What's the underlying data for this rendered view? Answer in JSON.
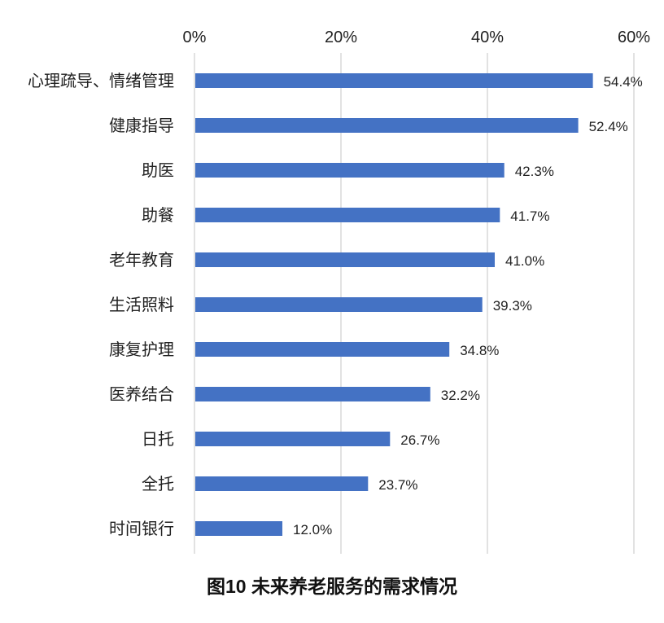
{
  "chart_data": {
    "type": "bar",
    "orientation": "horizontal",
    "title": "图10 未来养老服务的需求情况",
    "categories": [
      "心理疏导、情绪管理",
      "健康指导",
      "助医",
      "助餐",
      "老年教育",
      "生活照料",
      "康复护理",
      "医养结合",
      "日托",
      "全托",
      "时间银行"
    ],
    "values": [
      54.4,
      52.4,
      42.3,
      41.7,
      41.0,
      39.3,
      34.8,
      32.2,
      26.7,
      23.7,
      12.0
    ],
    "data_labels": [
      "54.4%",
      "52.4%",
      "42.3%",
      "41.7%",
      "41.0%",
      "39.3%",
      "34.8%",
      "32.2%",
      "26.7%",
      "23.7%",
      "12.0%"
    ],
    "xlim": [
      0,
      60
    ],
    "x_ticks": [
      0,
      20,
      40,
      60
    ],
    "x_tick_labels": [
      "0%",
      "20%",
      "40%",
      "60%"
    ],
    "x_axis_position": "top",
    "grid": true,
    "bar_color": "#4472C4",
    "grid_color": "#D9D9D9"
  }
}
